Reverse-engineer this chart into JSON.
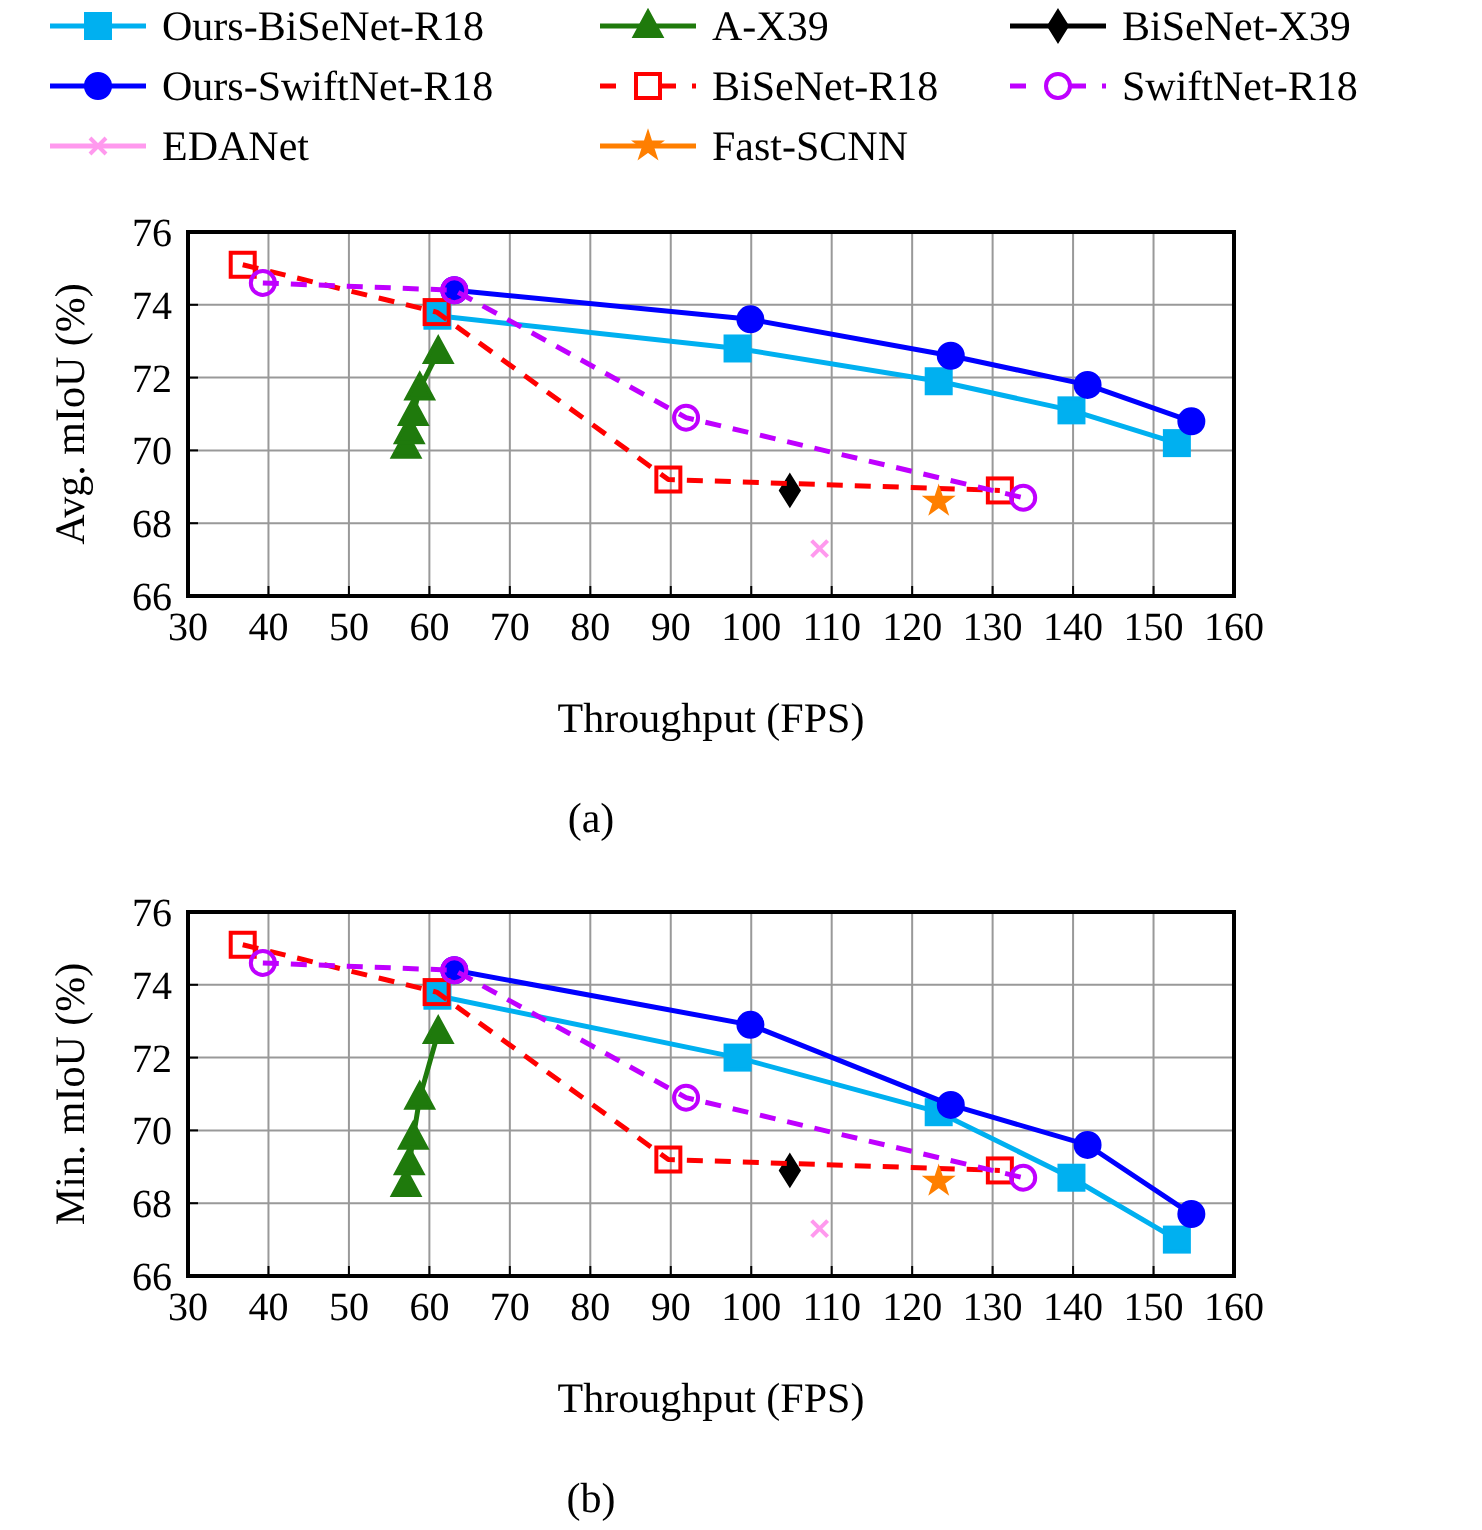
{
  "chart_data": [
    {
      "type": "line",
      "ylabel": "Avg. mIoU (%)",
      "xlabel": "Throughput (FPS)",
      "annotations": [
        "(a)"
      ],
      "xlim": [
        30,
        160
      ],
      "xticks": [
        30,
        40,
        50,
        60,
        70,
        80,
        90,
        100,
        110,
        120,
        130,
        140,
        150,
        160
      ],
      "ylim": [
        66,
        76
      ],
      "yticks": [
        66,
        68,
        70,
        72,
        74,
        76
      ],
      "grid": true,
      "legend": "top",
      "series": [
        {
          "name": "Ours-BiSeNet-R18",
          "color": "#00b0f0",
          "marker": "square",
          "line_style": "solid",
          "x": [
            61,
            98.3,
            123.3,
            139.8,
            152.9
          ],
          "values": [
            73.7,
            72.8,
            71.9,
            71.1,
            70.2
          ]
        },
        {
          "name": "A-X39",
          "color": "#1f7a0c",
          "marker": "triangle",
          "line_style": "solid",
          "x": [
            57.1,
            57.5,
            58,
            58.8,
            61.1
          ],
          "values": [
            70.1,
            70.5,
            71,
            71.7,
            72.7
          ]
        },
        {
          "name": "BiSeNet-X39",
          "color": "#000000",
          "marker": "diamond",
          "line_style": "solid",
          "x": [
            104.8
          ],
          "values": [
            68.9
          ]
        },
        {
          "name": "Ours-SwiftNet-R18",
          "color": "#0000ff",
          "marker": "circle",
          "line_style": "solid",
          "x": [
            63.1,
            99.9,
            124.8,
            141.8,
            154.7
          ],
          "values": [
            74.4,
            73.6,
            72.6,
            71.8,
            70.8
          ]
        },
        {
          "name": "BiSeNet-R18",
          "color": "#ff0000",
          "marker": "square",
          "line_style": "dashed",
          "x": [
            36.8,
            60.9,
            89.7,
            130.9
          ],
          "values": [
            75.1,
            73.8,
            69.2,
            68.9
          ]
        },
        {
          "name": "SwiftNet-R18",
          "color": "#bf00ff",
          "marker": "circle",
          "line_style": "dashed",
          "x": [
            39.3,
            63.1,
            91.9,
            133.8
          ],
          "values": [
            74.6,
            74.4,
            70.9,
            68.7
          ]
        },
        {
          "name": "EDANet",
          "color": "#ff99ee",
          "marker": "cross",
          "line_style": "solid",
          "x": [
            108.5
          ],
          "values": [
            67.3
          ]
        },
        {
          "name": "Fast-SCNN",
          "color": "#ff7f00",
          "marker": "star",
          "line_style": "solid",
          "x": [
            123.3
          ],
          "values": [
            68.6
          ]
        }
      ]
    },
    {
      "type": "line",
      "ylabel": "Min. mIoU (%)",
      "xlabel": "Throughput (FPS)",
      "annotations": [
        "(b)"
      ],
      "xlim": [
        30,
        160
      ],
      "xticks": [
        30,
        40,
        50,
        60,
        70,
        80,
        90,
        100,
        110,
        120,
        130,
        140,
        150,
        160
      ],
      "ylim": [
        66,
        76
      ],
      "yticks": [
        66,
        68,
        70,
        72,
        74,
        76
      ],
      "grid": true,
      "series": [
        {
          "color": "#00b0f0",
          "marker": "square",
          "line_style": "solid",
          "x": [
            61,
            98.3,
            123.3,
            139.8,
            152.9
          ],
          "values": [
            73.7,
            72,
            70.5,
            68.7,
            67
          ]
        },
        {
          "color": "#1f7a0c",
          "marker": "triangle",
          "line_style": "solid",
          "x": [
            57.1,
            57.5,
            58,
            58.8,
            61.1
          ],
          "values": [
            68.5,
            69.1,
            69.8,
            70.9,
            72.7
          ]
        },
        {
          "color": "#000000",
          "marker": "diamond",
          "line_style": "solid",
          "x": [
            104.8
          ],
          "values": [
            68.9
          ]
        },
        {
          "color": "#0000ff",
          "marker": "circle",
          "line_style": "solid",
          "x": [
            63.1,
            99.9,
            124.8,
            141.8,
            154.7
          ],
          "values": [
            74.4,
            72.9,
            70.7,
            69.6,
            67.7
          ]
        },
        {
          "color": "#ff0000",
          "marker": "square",
          "line_style": "dashed",
          "x": [
            36.8,
            60.9,
            89.7,
            130.9
          ],
          "values": [
            75.1,
            73.8,
            69.2,
            68.9
          ]
        },
        {
          "color": "#bf00ff",
          "marker": "circle",
          "line_style": "dashed",
          "x": [
            39.3,
            63.1,
            91.9,
            133.8
          ],
          "values": [
            74.6,
            74.4,
            70.9,
            68.7
          ]
        },
        {
          "color": "#ff99ee",
          "marker": "cross",
          "line_style": "solid",
          "x": [
            108.5
          ],
          "values": [
            67.3
          ]
        },
        {
          "color": "#ff7f00",
          "marker": "star",
          "line_style": "solid",
          "x": [
            123.3
          ],
          "values": [
            68.6
          ]
        }
      ]
    }
  ]
}
